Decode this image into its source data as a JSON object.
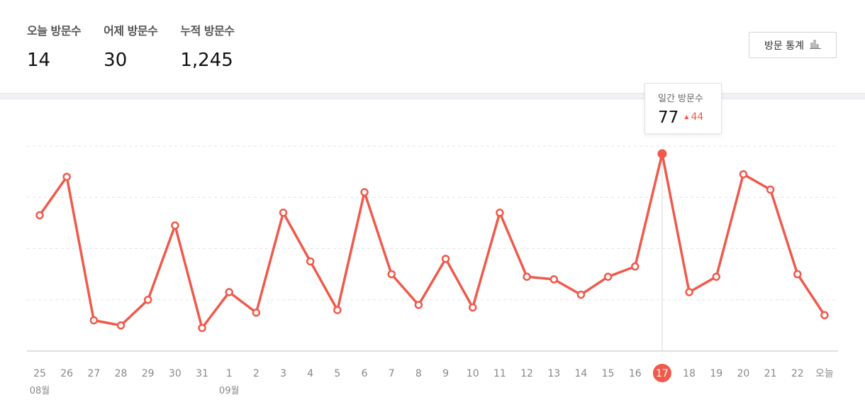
{
  "stats": [
    {
      "label": "오늘 방문수",
      "value": "14"
    },
    {
      "label": "어제 방문수",
      "value": "30"
    },
    {
      "label": "누적 방문수",
      "value": "1,245"
    }
  ],
  "stats_button": {
    "label": "방문 통계",
    "icon": "bar-chart-icon"
  },
  "tooltip": {
    "label": "일간 방문수",
    "value": "77",
    "diff": "44",
    "diff_icon": "triangle-up-icon"
  },
  "colors": {
    "line": "#ef5a4c",
    "grid": "#e3e3e3",
    "tooltip_diff": "#ef5a4c",
    "divider": "#f1f2f5"
  },
  "chart_data": {
    "type": "line",
    "x": [
      "25",
      "26",
      "27",
      "28",
      "29",
      "30",
      "31",
      "1",
      "2",
      "3",
      "4",
      "5",
      "6",
      "7",
      "8",
      "9",
      "10",
      "11",
      "12",
      "13",
      "14",
      "15",
      "16",
      "17",
      "18",
      "19",
      "20",
      "21",
      "22",
      "오늘"
    ],
    "month_labels": [
      {
        "index": 0,
        "label": "08월"
      },
      {
        "index": 7,
        "label": "09월"
      }
    ],
    "highlight_index": 23,
    "series": [
      {
        "values": [
          53,
          68,
          12,
          10,
          20,
          49,
          9,
          23,
          15,
          54,
          35,
          16,
          62,
          30,
          18,
          36,
          17,
          54,
          29,
          28,
          22,
          29,
          33,
          77,
          23,
          29,
          69,
          63,
          30,
          14
        ]
      }
    ],
    "ylim": [
      0,
      80
    ],
    "grid": true
  }
}
